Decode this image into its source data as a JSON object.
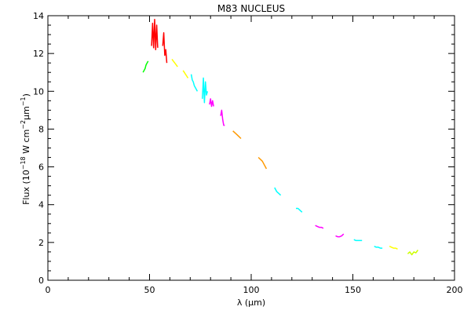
{
  "chart_data": {
    "type": "line",
    "title": "M83 NUCLEUS",
    "xlabel": "λ (μm)",
    "ylabel": {
      "prefix": "Flux (10",
      "exp1": "−18",
      "mid1": " W cm",
      "exp2": "−2",
      "mid2": "μm",
      "exp3": "−1",
      "suffix": ")"
    },
    "xlim": [
      0,
      200
    ],
    "ylim": [
      0,
      14
    ],
    "xticks": [
      0,
      50,
      100,
      150,
      200
    ],
    "xtick_labels": [
      "0",
      "50",
      "100",
      "150",
      "200"
    ],
    "yticks": [
      0,
      2,
      4,
      6,
      8,
      10,
      12,
      14
    ],
    "ytick_labels": [
      "0",
      "2",
      "4",
      "6",
      "8",
      "10",
      "12",
      "14"
    ],
    "grid": false,
    "series": [
      {
        "color": "#00ff00",
        "x": [
          46.8,
          47.3,
          47.8,
          48.3,
          48.8,
          49.3
        ],
        "y": [
          11.0,
          11.1,
          11.2,
          11.4,
          11.5,
          11.6
        ]
      },
      {
        "color": "#ff0000",
        "x": [
          51.0,
          51.5,
          52.0,
          52.5,
          53.0,
          53.5,
          54.0
        ],
        "y": [
          12.4,
          13.6,
          12.3,
          13.8,
          12.2,
          13.5,
          12.3
        ]
      },
      {
        "color": "#ff0000",
        "x": [
          56.5,
          57.0,
          57.5,
          58.0,
          58.5
        ],
        "y": [
          12.4,
          13.1,
          11.9,
          12.2,
          11.5
        ]
      },
      {
        "color": "#ffff00",
        "x": [
          61.0,
          61.7,
          62.4,
          63.1,
          63.8
        ],
        "y": [
          11.7,
          11.6,
          11.5,
          11.4,
          11.3
        ]
      },
      {
        "color": "#ffff00",
        "x": [
          66.5,
          67.1,
          67.7,
          68.3,
          68.9
        ],
        "y": [
          11.1,
          11.0,
          10.9,
          10.8,
          10.7
        ]
      },
      {
        "color": "#00ffff",
        "x": [
          70.5,
          71.0,
          71.5,
          72.0,
          72.5,
          73.0,
          73.5
        ],
        "y": [
          10.9,
          10.6,
          10.5,
          10.3,
          10.2,
          10.1,
          10.0
        ]
      },
      {
        "color": "#00ffff",
        "x": [
          76.0,
          76.5,
          77.0,
          77.5,
          78.0,
          78.5
        ],
        "y": [
          9.6,
          10.7,
          9.4,
          10.5,
          9.8,
          10.0
        ]
      },
      {
        "color": "#ff00ff",
        "x": [
          79.5,
          80.0,
          80.5,
          81.0,
          81.5
        ],
        "y": [
          9.3,
          9.6,
          9.2,
          9.5,
          9.2
        ]
      },
      {
        "color": "#ff00ff",
        "x": [
          85.0,
          85.5,
          86.0,
          86.5,
          87.0
        ],
        "y": [
          8.7,
          9.0,
          8.5,
          8.2,
          8.2
        ]
      },
      {
        "color": "#ff9900",
        "x": [
          91.0,
          92.0,
          93.0,
          94.0,
          95.0
        ],
        "y": [
          7.9,
          7.8,
          7.7,
          7.6,
          7.5
        ]
      },
      {
        "color": "#ff9900",
        "x": [
          103.5,
          104.5,
          105.5,
          106.5,
          107.5
        ],
        "y": [
          6.5,
          6.4,
          6.3,
          6.1,
          5.9
        ]
      },
      {
        "color": "#00ffff",
        "x": [
          111.5,
          112.5,
          113.5,
          114.5
        ],
        "y": [
          4.9,
          4.7,
          4.6,
          4.5
        ]
      },
      {
        "color": "#00ffff",
        "x": [
          122.0,
          123.0,
          124.0,
          125.0
        ],
        "y": [
          3.8,
          3.8,
          3.7,
          3.6
        ]
      },
      {
        "color": "#ff00ff",
        "x": [
          131.5,
          132.5,
          133.5,
          134.5,
          135.5
        ],
        "y": [
          2.9,
          2.85,
          2.8,
          2.8,
          2.75
        ]
      },
      {
        "color": "#ff00ff",
        "x": [
          141.5,
          142.5,
          143.5,
          144.5,
          145.5
        ],
        "y": [
          2.35,
          2.3,
          2.3,
          2.35,
          2.45
        ]
      },
      {
        "color": "#00ffff",
        "x": [
          150.5,
          151.5,
          152.5,
          153.5,
          154.5
        ],
        "y": [
          2.15,
          2.1,
          2.1,
          2.1,
          2.1
        ]
      },
      {
        "color": "#00ffff",
        "x": [
          160.5,
          161.5,
          162.5,
          163.5,
          164.5
        ],
        "y": [
          1.8,
          1.75,
          1.75,
          1.7,
          1.7
        ]
      },
      {
        "color": "#ffff00",
        "x": [
          168.0,
          169.0,
          170.0,
          171.0,
          172.0
        ],
        "y": [
          1.8,
          1.75,
          1.7,
          1.7,
          1.65
        ]
      },
      {
        "color": "#ccff00",
        "x": [
          177.0,
          178.0,
          179.0,
          180.0,
          181.0,
          182.0
        ],
        "y": [
          1.4,
          1.5,
          1.35,
          1.5,
          1.45,
          1.6
        ]
      }
    ]
  }
}
